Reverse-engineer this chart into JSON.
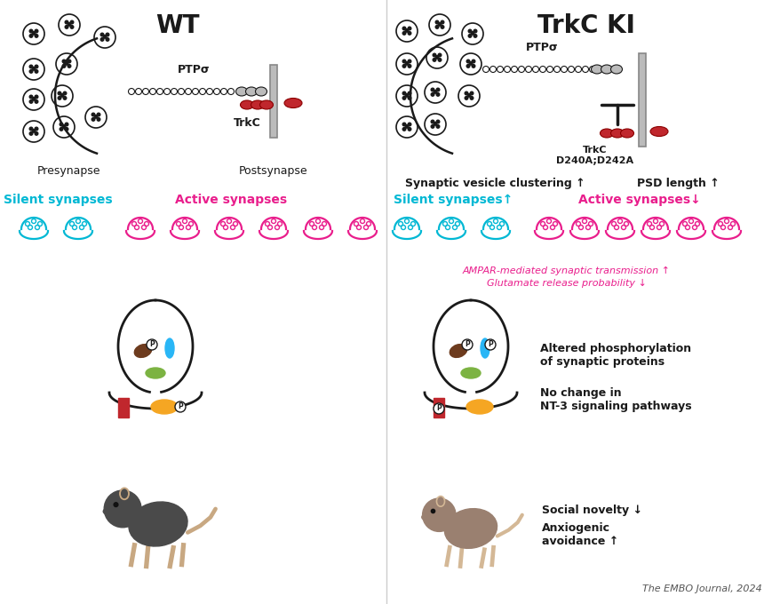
{
  "title_wt": "WT",
  "title_ki": "TrkC KI",
  "bg_color": "#ffffff",
  "dark_color": "#1a1a1a",
  "red_color": "#c0272d",
  "gray_light": "#bbbbbb",
  "gray_med": "#888888",
  "cyan_color": "#00b8d4",
  "magenta_color": "#e91e8c",
  "brown_color": "#6d3b1e",
  "blue_color": "#29b6f6",
  "green_color": "#7cb342",
  "orange_color": "#f5a623",
  "tan_color": "#c8a882",
  "label_presynapse": "Presynapse",
  "label_postsynapse": "Postsynapse",
  "label_ptpsigma": "PTPσ",
  "label_trkc": "TrkC",
  "label_trkc_mut": "TrkC\nD240A;D242A",
  "label_silent": "Silent synapses",
  "label_active": "Active synapses",
  "label_silent_up": "Silent synapses↑",
  "label_active_down": "Active synapses↓",
  "label_synaptic_vesicle": "Synaptic vesicle clustering ↑",
  "label_psd": "PSD length ↑",
  "label_ampar": "AMPAR-mediated synaptic transmission ↑",
  "label_glutamate": "Glutamate release probability ↓",
  "label_phosphorylation": "Altered phosphorylation\nof synaptic proteins",
  "label_nt3": "No change in\nNT-3 signaling pathways",
  "label_social": "Social novelty ↓",
  "label_anxiogenic": "Anxiogenic\navoidance ↑",
  "label_journal": "The EMBO Journal, 2024"
}
